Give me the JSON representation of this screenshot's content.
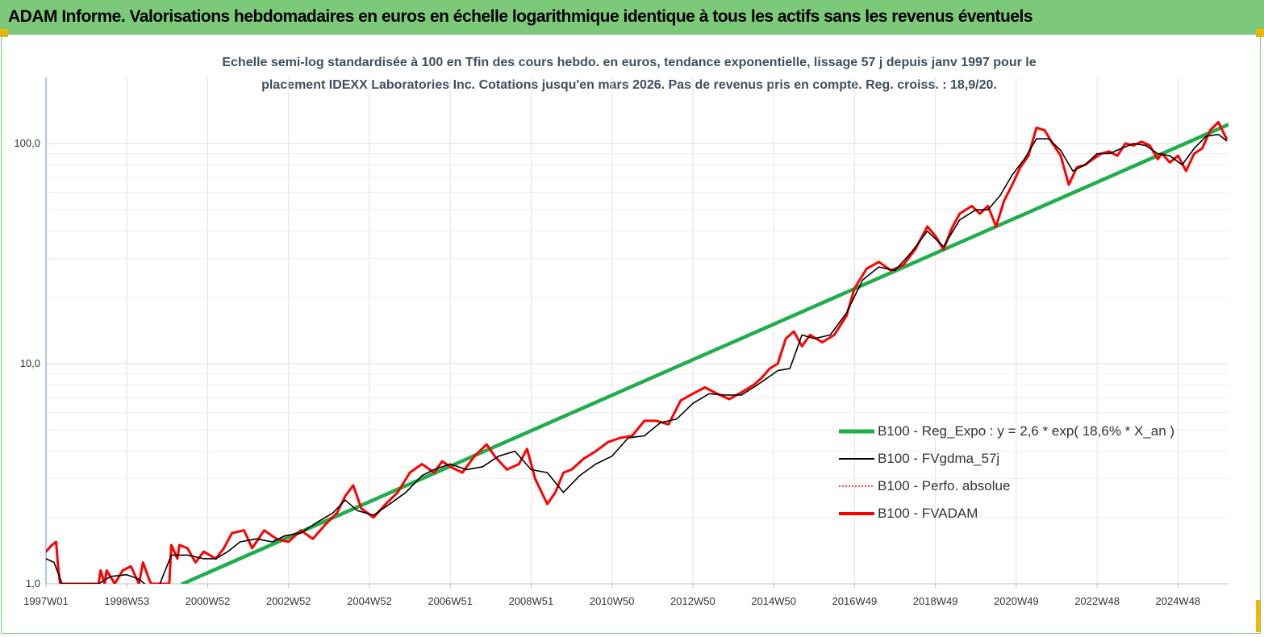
{
  "header": {
    "title": "ADAM Informe. Valorisations hebdomadaires en euros en échelle logarithmique identique à tous les actifs sans les revenus éventuels"
  },
  "chart_data": {
    "type": "line",
    "title": "Echelle semi-log standardisée à 100 en Tfin des cours hebdo. en euros, tendance exponentielle, lissage 57 j depuis janv 1997 pour le placement IDEXX Laboratories Inc. Cotations jusqu'en mars 2026. Pas de revenus pris en compte. Reg. croiss. : 18,9/20.",
    "title_line1": "Echelle semi-log standardisée à 100 en Tfin des cours hebdo. en euros, tendance exponentielle, lissage 57 j depuis janv 1997 pour le",
    "title_line2": "placement IDEXX Laboratories Inc. Cotations jusqu'en mars 2026. Pas de revenus pris en compte. Reg. croiss. : 18,9/20.",
    "x_range": [
      1997.0,
      2026.25
    ],
    "y_scale": "log",
    "ylim": [
      1,
      200
    ],
    "y_ticks": [
      {
        "value": 1,
        "label": "1,0"
      },
      {
        "value": 10,
        "label": "10,0"
      },
      {
        "value": 100,
        "label": "100,0"
      }
    ],
    "x_ticks": [
      {
        "value": 1997.0,
        "label": "1997W01"
      },
      {
        "value": 1999.0,
        "label": "1998W53"
      },
      {
        "value": 2001.0,
        "label": "2000W52"
      },
      {
        "value": 2003.0,
        "label": "2002W52"
      },
      {
        "value": 2005.0,
        "label": "2004W52"
      },
      {
        "value": 2007.0,
        "label": "2006W51"
      },
      {
        "value": 2009.0,
        "label": "2008W51"
      },
      {
        "value": 2011.0,
        "label": "2010W50"
      },
      {
        "value": 2013.0,
        "label": "2012W50"
      },
      {
        "value": 2015.0,
        "label": "2014W50"
      },
      {
        "value": 2017.0,
        "label": "2016W49"
      },
      {
        "value": 2019.0,
        "label": "2018W49"
      },
      {
        "value": 2021.0,
        "label": "2020W49"
      },
      {
        "value": 2023.0,
        "label": "2022W48"
      },
      {
        "value": 2025.0,
        "label": "2024W48"
      }
    ],
    "grid": true,
    "legend_position": "bottom-right",
    "series": [
      {
        "name": "B100 - Reg_Expo : y = 2,6 * exp( 18,6% *  X_an )",
        "color": "#1fae4b",
        "style": "thick",
        "x": [
          2000.38,
          2026.25
        ],
        "y": [
          1.0,
          122.0
        ]
      },
      {
        "name": "B100 - FVgdma_57j",
        "color": "#000000",
        "style": "solid",
        "x": [
          1997.0,
          1997.2,
          1997.4,
          1998.3,
          1998.6,
          1999.0,
          1999.3,
          1999.5,
          1999.8,
          2000.1,
          2000.5,
          2000.9,
          2001.2,
          2001.5,
          2001.8,
          2002.2,
          2002.6,
          2002.9,
          2003.3,
          2003.7,
          2004.1,
          2004.4,
          2004.7,
          2005.1,
          2005.5,
          2005.9,
          2006.3,
          2006.6,
          2007.0,
          2007.4,
          2007.8,
          2008.2,
          2008.6,
          2009.0,
          2009.4,
          2009.8,
          2010.2,
          2010.6,
          2011.0,
          2011.4,
          2011.8,
          2012.2,
          2012.6,
          2013.0,
          2013.4,
          2013.8,
          2014.2,
          2014.5,
          2014.8,
          2015.1,
          2015.4,
          2015.7,
          2016.0,
          2016.4,
          2016.8,
          2017.2,
          2017.6,
          2018.0,
          2018.4,
          2018.8,
          2019.2,
          2019.6,
          2020.0,
          2020.3,
          2020.6,
          2020.9,
          2021.2,
          2021.5,
          2021.8,
          2022.1,
          2022.4,
          2022.7,
          2023.0,
          2023.3,
          2023.6,
          2023.9,
          2024.2,
          2024.5,
          2024.8,
          2025.1,
          2025.4,
          2025.7,
          2026.0,
          2026.2
        ],
        "y": [
          1.3,
          1.25,
          1.0,
          1.0,
          1.08,
          1.1,
          1.05,
          0.98,
          0.98,
          1.35,
          1.35,
          1.3,
          1.3,
          1.4,
          1.55,
          1.6,
          1.55,
          1.65,
          1.7,
          1.9,
          2.1,
          2.4,
          2.15,
          2.05,
          2.3,
          2.6,
          3.1,
          3.3,
          3.5,
          3.3,
          3.4,
          3.8,
          4.0,
          3.3,
          3.2,
          2.6,
          3.1,
          3.5,
          3.8,
          4.6,
          4.7,
          5.4,
          5.6,
          6.6,
          7.3,
          7.2,
          7.2,
          7.8,
          8.5,
          9.3,
          9.5,
          13.5,
          13.0,
          13.5,
          17.0,
          24.0,
          27.5,
          26.5,
          32.0,
          40.0,
          34.0,
          45.0,
          50.0,
          50.0,
          58.0,
          72.0,
          85.0,
          105.0,
          105.0,
          93.0,
          75.0,
          80.0,
          90.0,
          90.0,
          95.0,
          100.0,
          98.0,
          90.0,
          88.0,
          80.0,
          95.0,
          108.0,
          110.0,
          103.0
        ]
      },
      {
        "name": "B100 - Perfo. absolue",
        "color": "#ff0000",
        "style": "dotted",
        "x": [],
        "y": []
      },
      {
        "name": "B100 - FVADAM",
        "color": "#ff0000",
        "style": "thick",
        "x": [
          1997.0,
          1997.15,
          1997.25,
          1997.3,
          1997.35,
          1998.3,
          1998.35,
          1998.45,
          1998.5,
          1998.7,
          1998.9,
          1999.1,
          1999.3,
          1999.4,
          1999.55,
          1999.6,
          2000.05,
          2000.1,
          2000.25,
          2000.3,
          2000.5,
          2000.7,
          2000.9,
          2001.2,
          2001.4,
          2001.6,
          2001.9,
          2002.1,
          2002.4,
          2002.7,
          2003.0,
          2003.3,
          2003.6,
          2003.9,
          2004.2,
          2004.4,
          2004.6,
          2004.8,
          2005.1,
          2005.4,
          2005.7,
          2006.0,
          2006.3,
          2006.6,
          2006.8,
          2007.0,
          2007.3,
          2007.6,
          2007.9,
          2008.1,
          2008.4,
          2008.7,
          2008.9,
          2009.1,
          2009.4,
          2009.6,
          2009.8,
          2010.0,
          2010.3,
          2010.6,
          2010.9,
          2011.2,
          2011.5,
          2011.8,
          2012.1,
          2012.4,
          2012.7,
          2013.0,
          2013.3,
          2013.6,
          2013.9,
          2014.2,
          2014.5,
          2014.7,
          2014.9,
          2015.1,
          2015.3,
          2015.5,
          2015.7,
          2015.9,
          2016.2,
          2016.5,
          2016.8,
          2017.0,
          2017.3,
          2017.6,
          2017.9,
          2018.2,
          2018.5,
          2018.8,
          2019.0,
          2019.2,
          2019.4,
          2019.6,
          2019.9,
          2020.1,
          2020.3,
          2020.5,
          2020.7,
          2020.9,
          2021.1,
          2021.3,
          2021.5,
          2021.7,
          2021.9,
          2022.1,
          2022.3,
          2022.5,
          2022.7,
          2022.9,
          2023.1,
          2023.3,
          2023.5,
          2023.7,
          2023.9,
          2024.1,
          2024.3,
          2024.5,
          2024.6,
          2024.8,
          2025.0,
          2025.2,
          2025.4,
          2025.6,
          2025.8,
          2026.0,
          2026.2
        ],
        "y": [
          1.4,
          1.5,
          1.55,
          1.2,
          1.0,
          1.0,
          1.15,
          1.0,
          1.15,
          1.0,
          1.15,
          1.2,
          1.0,
          1.25,
          1.05,
          1.0,
          1.0,
          1.5,
          1.3,
          1.5,
          1.45,
          1.25,
          1.4,
          1.3,
          1.45,
          1.7,
          1.75,
          1.45,
          1.75,
          1.6,
          1.55,
          1.75,
          1.6,
          1.85,
          2.1,
          2.5,
          2.8,
          2.2,
          2.0,
          2.3,
          2.6,
          3.2,
          3.5,
          3.2,
          3.6,
          3.4,
          3.2,
          3.8,
          4.3,
          3.8,
          3.3,
          3.5,
          4.1,
          3.0,
          2.3,
          2.6,
          3.2,
          3.3,
          3.7,
          4.0,
          4.4,
          4.6,
          4.7,
          5.5,
          5.5,
          5.3,
          6.8,
          7.3,
          7.8,
          7.3,
          6.9,
          7.4,
          8.0,
          8.6,
          9.5,
          10.0,
          13.0,
          14.0,
          12.0,
          13.5,
          12.5,
          13.5,
          16.5,
          22.0,
          27.0,
          29.0,
          26.5,
          28.0,
          33.0,
          42.0,
          38.0,
          33.0,
          41.0,
          48.0,
          52.0,
          48.0,
          52.0,
          42.0,
          55.0,
          65.0,
          78.0,
          88.0,
          118.0,
          115.0,
          100.0,
          88.0,
          65.0,
          78.0,
          80.0,
          85.0,
          90.0,
          92.0,
          88.0,
          100.0,
          98.0,
          102.0,
          98.0,
          85.0,
          90.0,
          82.0,
          88.0,
          75.0,
          90.0,
          95.0,
          115.0,
          125.0,
          105.0
        ]
      }
    ]
  }
}
